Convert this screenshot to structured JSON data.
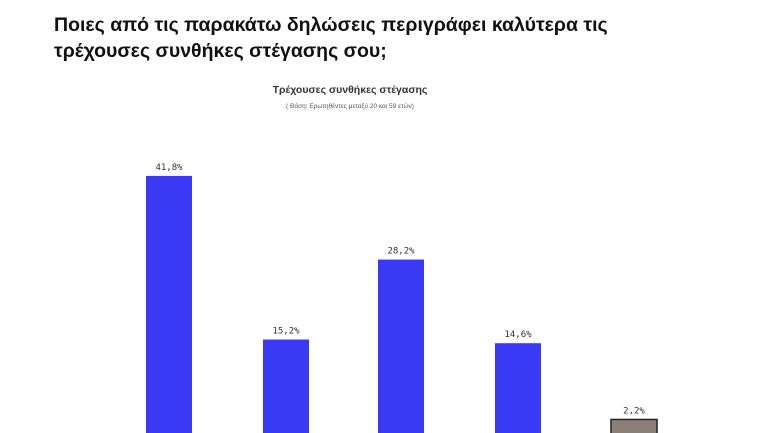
{
  "question": {
    "line1": "Ποιες από τις παρακάτω  δηλώσεις περιγράφει καλύτερα τις",
    "line2": "τρέχουσες συνθήκες στέγασης σου;"
  },
  "chart_data": {
    "type": "bar",
    "title": "Τρέχουσες συνθήκες στέγασης",
    "subtitle": "( Βάση: Ερωτηθέντες μεταξύ 20 και 59 ετών)",
    "values": [
      41.8,
      15.2,
      28.2,
      14.6,
      2.2
    ],
    "value_labels": [
      "41,8%",
      "15,2%",
      "28,2%",
      "14,6%",
      "2,2%"
    ],
    "bar_colors": [
      "#3a3af5",
      "#3a3af5",
      "#3a3af5",
      "#3a3af5",
      "#8a8078"
    ],
    "grid": false,
    "legend": "none"
  }
}
